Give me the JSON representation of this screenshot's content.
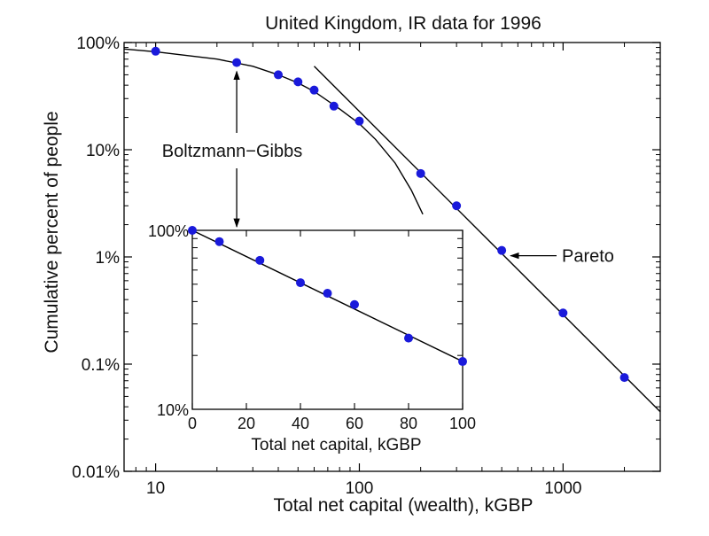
{
  "chart_data": [
    {
      "type": "line",
      "title": "United Kingdom, IR data for 1996",
      "xlabel": "Total net capital (wealth), kGBP",
      "ylabel": "Cumulative percent of people",
      "x_scale": "log",
      "y_scale": "log",
      "xlim": [
        7,
        3000
      ],
      "ylim": [
        0.01,
        100
      ],
      "x_ticks": [
        10,
        100,
        1000
      ],
      "x_tick_labels": [
        "10",
        "100",
        "1000"
      ],
      "y_ticks": [
        0.01,
        0.1,
        1,
        10,
        100
      ],
      "y_tick_labels": [
        "0.01%",
        "0.1%",
        "1%",
        "10%",
        "100%"
      ],
      "series": [
        {
          "points": [
            {
              "x": 10,
              "y": 83
            },
            {
              "x": 25,
              "y": 65
            },
            {
              "x": 40,
              "y": 50
            },
            {
              "x": 50,
              "y": 43
            },
            {
              "x": 60,
              "y": 36
            },
            {
              "x": 75,
              "y": 25.5
            },
            {
              "x": 100,
              "y": 18.5
            },
            {
              "x": 200,
              "y": 6
            },
            {
              "x": 300,
              "y": 3
            },
            {
              "x": 500,
              "y": 1.15
            },
            {
              "x": 1000,
              "y": 0.3
            },
            {
              "x": 2000,
              "y": 0.075
            }
          ]
        }
      ],
      "fit_lines": [
        {
          "kind": "boltzmann-gibbs",
          "points": [
            {
              "x": 7,
              "y": 87
            },
            {
              "x": 10,
              "y": 82
            },
            {
              "x": 20,
              "y": 70
            },
            {
              "x": 30,
              "y": 60
            },
            {
              "x": 40,
              "y": 50
            },
            {
              "x": 50,
              "y": 42
            },
            {
              "x": 60,
              "y": 35
            },
            {
              "x": 80,
              "y": 24
            },
            {
              "x": 100,
              "y": 17.5
            },
            {
              "x": 120,
              "y": 12.5
            },
            {
              "x": 150,
              "y": 7.5
            },
            {
              "x": 180,
              "y": 4.2
            },
            {
              "x": 205,
              "y": 2.5
            }
          ]
        },
        {
          "kind": "pareto",
          "points": [
            {
              "x": 60,
              "y": 60
            },
            {
              "x": 3000,
              "y": 0.036
            }
          ]
        }
      ],
      "annotations": [
        {
          "text": "Boltzmann−Gibbs",
          "arrows_to": [
            "main-point-x25",
            "inset-point-x0"
          ]
        },
        {
          "text": "Pareto",
          "arrow_to": "main-point-x500"
        }
      ],
      "legend": "none",
      "grid": false,
      "colors": {
        "marker": "#1a1adb",
        "line": "#000000"
      }
    },
    {
      "type": "line",
      "inset": true,
      "xlabel": "Total net capital, kGBP",
      "x_scale": "linear",
      "y_scale": "log",
      "xlim": [
        0,
        100
      ],
      "ylim": [
        10,
        100
      ],
      "x_ticks": [
        0,
        20,
        40,
        60,
        80,
        100
      ],
      "x_tick_labels": [
        "0",
        "20",
        "40",
        "60",
        "80",
        "100"
      ],
      "y_ticks": [
        10,
        100
      ],
      "y_tick_labels": [
        "10%",
        "100%"
      ],
      "series": [
        {
          "points": [
            {
              "x": 0,
              "y": 100
            },
            {
              "x": 10,
              "y": 86.5
            },
            {
              "x": 25,
              "y": 68
            },
            {
              "x": 40,
              "y": 51
            },
            {
              "x": 50,
              "y": 44.5
            },
            {
              "x": 60,
              "y": 38.5
            },
            {
              "x": 80,
              "y": 25
            },
            {
              "x": 100,
              "y": 18.5
            }
          ]
        }
      ],
      "fit_lines": [
        {
          "kind": "exponential",
          "points": [
            {
              "x": 0,
              "y": 100
            },
            {
              "x": 100,
              "y": 18.5
            }
          ]
        }
      ],
      "legend": "none",
      "grid": false
    }
  ]
}
